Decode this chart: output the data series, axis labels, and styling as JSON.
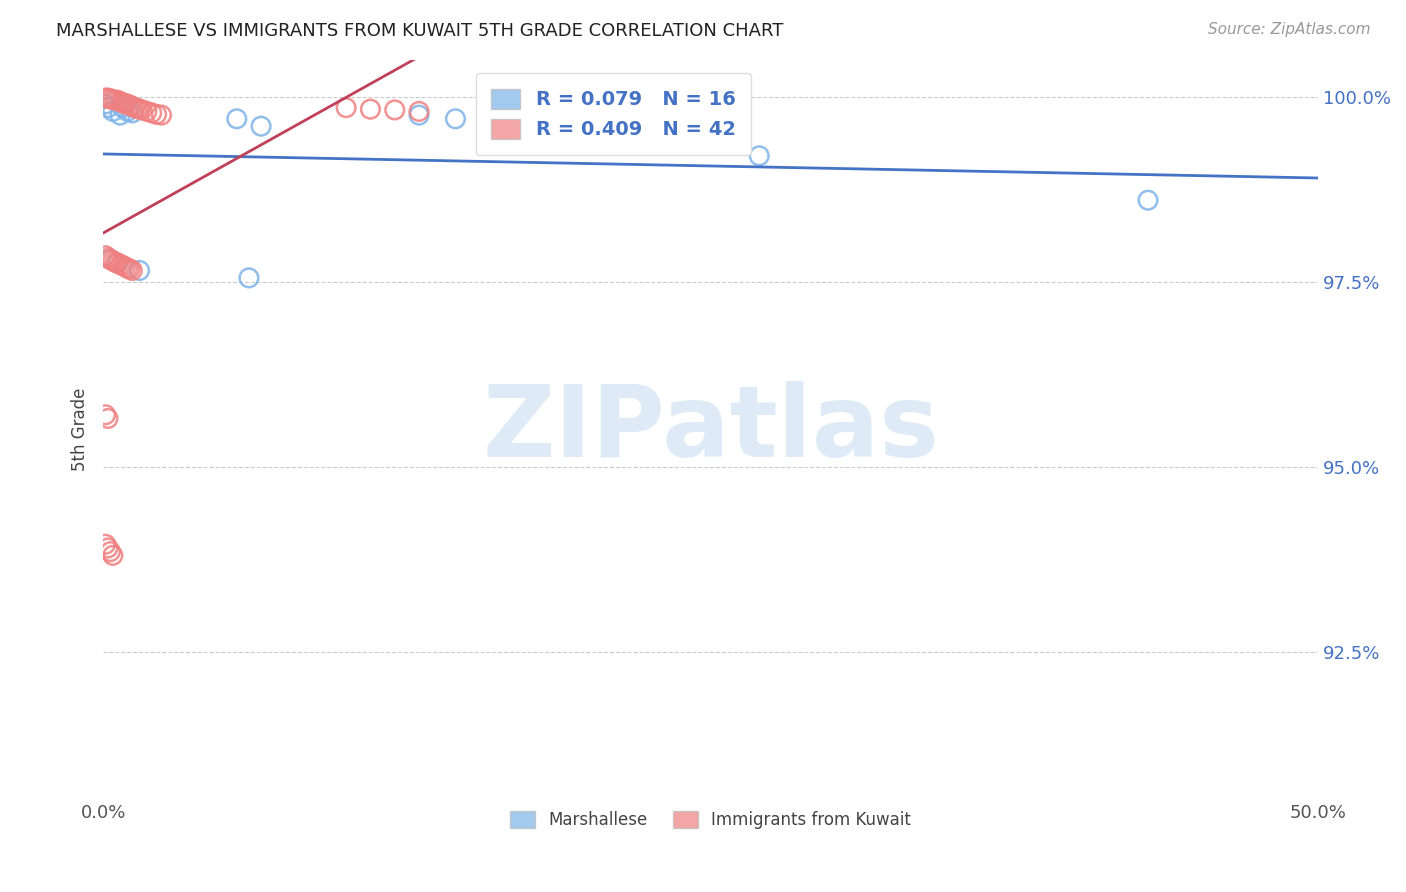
{
  "title": "MARSHALLESE VS IMMIGRANTS FROM KUWAIT 5TH GRADE CORRELATION CHART",
  "source": "Source: ZipAtlas.com",
  "ylabel_label": "5th Grade",
  "xlim": [
    0.0,
    0.5
  ],
  "ylim": [
    0.905,
    1.005
  ],
  "ytick_vals": [
    0.925,
    0.95,
    0.975,
    1.0
  ],
  "ytick_labels": [
    "92.5%",
    "95.0%",
    "97.5%",
    "100.0%"
  ],
  "xtick_vals": [
    0.0,
    0.5
  ],
  "xtick_labels": [
    "0.0%",
    "50.0%"
  ],
  "blue_color": "#7EB3E8",
  "pink_color": "#F08080",
  "trendline_blue_color": "#4472C4",
  "trendline_pink_color": "#C0405A",
  "watermark_zip": "ZIP",
  "watermark_atlas": "atlas",
  "blue_scatter": [
    [
      0.001,
      0.999
    ],
    [
      0.002,
      0.9985
    ],
    [
      0.004,
      0.998
    ],
    [
      0.007,
      0.9975
    ],
    [
      0.008,
      0.9985
    ],
    [
      0.01,
      0.998
    ],
    [
      0.012,
      0.9978
    ],
    [
      0.055,
      0.997
    ],
    [
      0.065,
      0.996
    ],
    [
      0.13,
      0.9975
    ],
    [
      0.145,
      0.997
    ],
    [
      0.003,
      0.978
    ],
    [
      0.006,
      0.9775
    ],
    [
      0.015,
      0.9765
    ],
    [
      0.06,
      0.9755
    ],
    [
      0.27,
      0.992
    ],
    [
      0.43,
      0.986
    ]
  ],
  "pink_scatter": [
    [
      0.001,
      0.9998
    ],
    [
      0.002,
      0.9998
    ],
    [
      0.003,
      0.9997
    ],
    [
      0.004,
      0.9996
    ],
    [
      0.005,
      0.9995
    ],
    [
      0.006,
      0.9995
    ],
    [
      0.007,
      0.9993
    ],
    [
      0.008,
      0.9992
    ],
    [
      0.009,
      0.999
    ],
    [
      0.01,
      0.999
    ],
    [
      0.011,
      0.9988
    ],
    [
      0.012,
      0.9987
    ],
    [
      0.013,
      0.9985
    ],
    [
      0.014,
      0.9984
    ],
    [
      0.015,
      0.9983
    ],
    [
      0.016,
      0.9982
    ],
    [
      0.018,
      0.998
    ],
    [
      0.02,
      0.9978
    ],
    [
      0.022,
      0.9976
    ],
    [
      0.024,
      0.9975
    ],
    [
      0.1,
      0.9985
    ],
    [
      0.11,
      0.9983
    ],
    [
      0.12,
      0.9982
    ],
    [
      0.13,
      0.998
    ],
    [
      0.001,
      0.9785
    ],
    [
      0.002,
      0.9782
    ],
    [
      0.003,
      0.978
    ],
    [
      0.004,
      0.9778
    ],
    [
      0.005,
      0.9776
    ],
    [
      0.006,
      0.9775
    ],
    [
      0.007,
      0.9773
    ],
    [
      0.008,
      0.9772
    ],
    [
      0.009,
      0.977
    ],
    [
      0.01,
      0.9768
    ],
    [
      0.011,
      0.9767
    ],
    [
      0.012,
      0.9765
    ],
    [
      0.001,
      0.957
    ],
    [
      0.002,
      0.9565
    ],
    [
      0.001,
      0.9395
    ],
    [
      0.002,
      0.939
    ],
    [
      0.003,
      0.9385
    ],
    [
      0.004,
      0.938
    ]
  ]
}
